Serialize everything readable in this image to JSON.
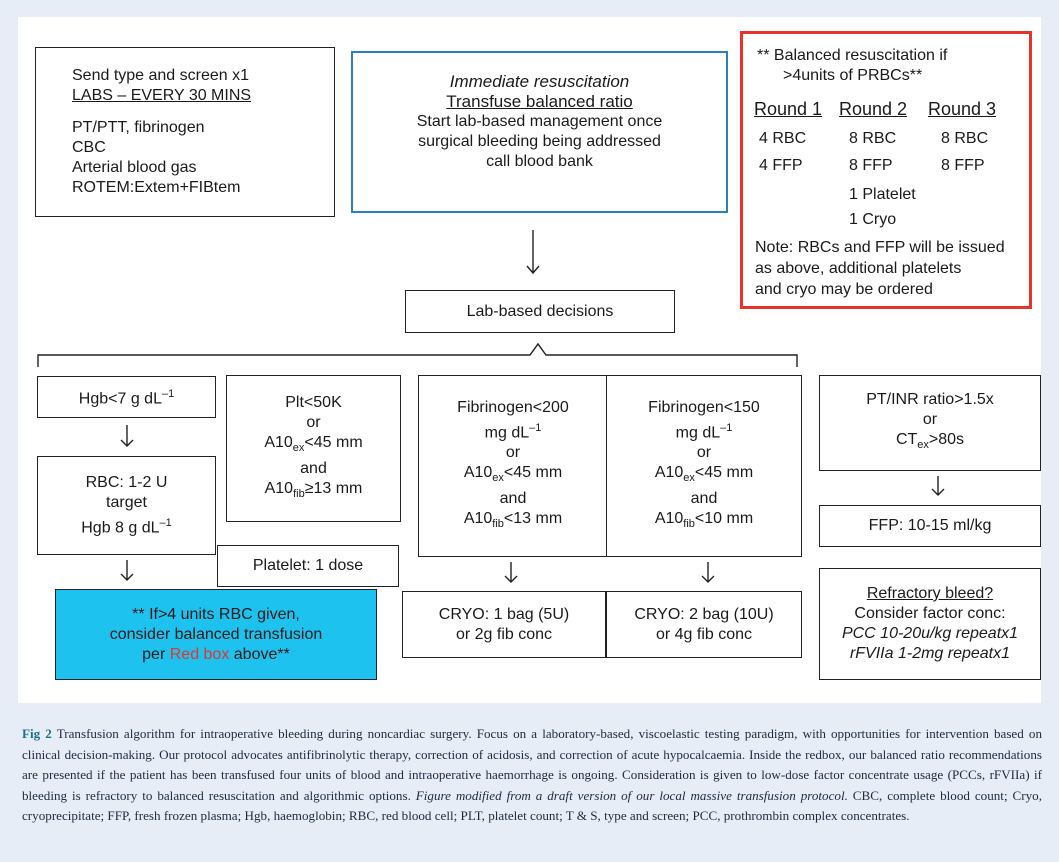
{
  "labs_box": {
    "line1": "Send type and screen x1",
    "line2": "LABS – EVERY 30 MINS",
    "line3": "PT/PTT, fibrinogen",
    "line4": "CBC",
    "line5": "Arterial blood gas",
    "line6": "ROTEM:Extem+FIBtem"
  },
  "resus_box": {
    "line1": "Immediate resuscitation",
    "line2": "Transfuse balanced ratio",
    "line3": "Start lab-based management once",
    "line4": "surgical bleeding being addressed",
    "line5": "call blood bank"
  },
  "red_box": {
    "heading1": "** Balanced resuscitation if",
    "heading2": ">4units of PRBCs**",
    "rounds": [
      "Round 1",
      "Round 2",
      "Round 3"
    ],
    "round1": [
      "4 RBC",
      "4 FFP"
    ],
    "round2": [
      "8 RBC",
      "8 FFP",
      "1 Platelet",
      "1 Cryo"
    ],
    "round3": [
      "8 RBC",
      "8 FFP"
    ],
    "note1": "Note: RBCs and FFP will be issued",
    "note2": "as above, additional platelets",
    "note3": "and cryo may be ordered",
    "border_color": "#e8332a"
  },
  "lab_decisions": "Lab-based decisions",
  "hgb": {
    "trigger_text": "Hgb<7 g dL",
    "trigger_sup": "–1",
    "action1": "RBC: 1-2 U",
    "action2": "target",
    "action3_text": "Hgb 8 g dL",
    "action3_sup": "–1"
  },
  "plt": {
    "l1": "Plt<50K",
    "l2": "or",
    "l3_a": "A10",
    "l3_sub": "ex",
    "l3_b": "<45 mm",
    "l4": "and",
    "l5_a": "A10",
    "l5_sub": "fib",
    "l5_b": "≥13 mm",
    "action": "Platelet: 1 dose"
  },
  "fib200": {
    "l1": "Fibrinogen<200",
    "l2_a": "mg dL",
    "l2_sup": "–1",
    "l3": "or",
    "l4_a": "A10",
    "l4_sub": "ex",
    "l4_b": "<45 mm",
    "l5": "and",
    "l6_a": "A10",
    "l6_sub": "fib",
    "l6_b": "<13 mm",
    "action1": "CRYO: 1 bag (5U)",
    "action2": "or 2g fib conc"
  },
  "fib150": {
    "l1": "Fibrinogen<150",
    "l2_a": "mg dL",
    "l2_sup": "–1",
    "l3": "or",
    "l4_a": "A10",
    "l4_sub": "ex",
    "l4_b": "<45 mm",
    "l5": "and",
    "l6_a": "A10",
    "l6_sub": "fib",
    "l6_b": "<10 mm",
    "action1": "CRYO: 2 bag (10U)",
    "action2": "or 4g fib conc"
  },
  "inr": {
    "l1": "PT/INR ratio>1.5x",
    "l2": "or",
    "l3_a": "CT",
    "l3_sub": "ex",
    "l3_b": ">80s",
    "action": "FFP: 10-15 ml/kg"
  },
  "blue_box": {
    "line1": "** If>4 units RBC given,",
    "line2": "consider balanced transfusion",
    "line3_a": "per ",
    "line3_red": "Red box",
    "line3_b": " above**",
    "fill_color": "#1ec2ef"
  },
  "refractory": {
    "title": "Refractory bleed?",
    "l2": "Consider factor conc:",
    "l3": "PCC 10-20u/kg repeatx1",
    "l4": "rFVIIa 1-2mg repeatx1"
  },
  "caption": {
    "label": "Fig 2",
    "text1": " Transfusion algorithm for intraoperative bleeding during noncardiac surgery. Focus on a laboratory-based, viscoelastic testing paradigm, with opportunities for intervention based on clinical decision-making. Our protocol advocates antifibrinolytic therapy, correction of acidosis, and correction of acute hypocalcaemia. Inside the redbox, our balanced ratio recommendations are presented if the patient has been transfused four units of blood and intraoperative haemorrhage is ongoing. Consideration is given to low-dose factor concentrate usage (PCCs, rFVIIa) if bleeding is refractory to balanced resuscitation and algorithmic options. ",
    "italic": "Figure modified from a draft version of our local massive transfusion protocol.",
    "text2": " CBC, complete blood count; Cryo, cryoprecipitate; FFP, fresh frozen plasma; Hgb, haemoglobin; RBC, red blood cell; PLT, platelet count; T & S, type and screen; PCC, prothrombin complex concentrates."
  },
  "colors": {
    "background": "#e6edf7",
    "resus_border": "#2a7fc0",
    "caption_label": "#1f6f8b"
  }
}
